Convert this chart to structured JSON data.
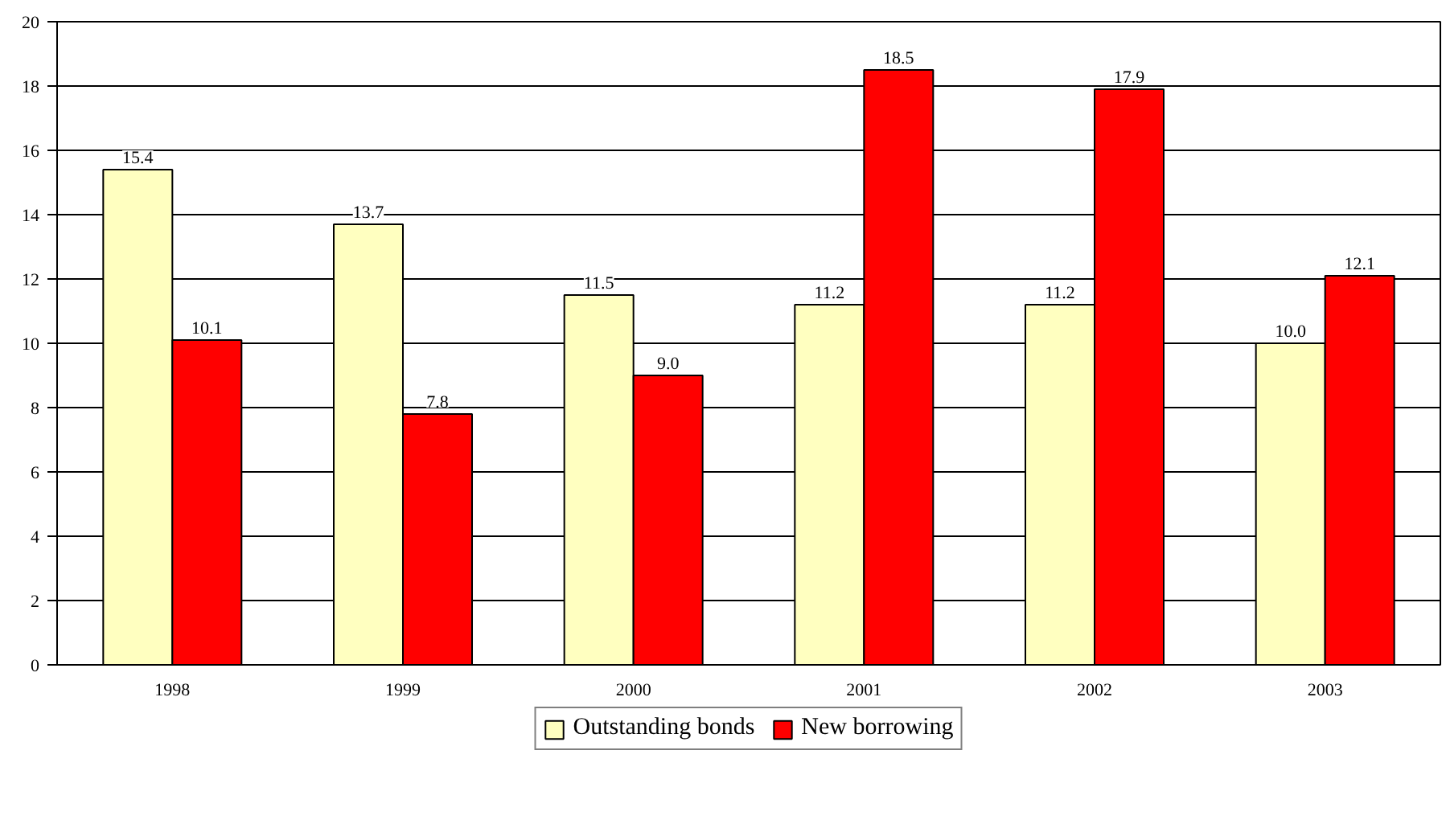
{
  "chart_data": {
    "type": "bar",
    "categories": [
      "1998",
      "1999",
      "2000",
      "2001",
      "2002",
      "2003"
    ],
    "series": [
      {
        "name": "Outstanding bonds",
        "color": "#ffffc0",
        "values": [
          15.4,
          13.7,
          11.5,
          11.2,
          11.2,
          10.0
        ],
        "value_labels": [
          "15.4",
          "13.7",
          "11.5",
          "11.2",
          "11.2",
          "10.0"
        ]
      },
      {
        "name": "New borrowing",
        "color": "#ff0000",
        "values": [
          10.1,
          7.8,
          9.0,
          18.5,
          17.9,
          12.1
        ],
        "value_labels": [
          "10.1",
          "7.8",
          "9.0",
          "18.5",
          "17.9",
          "12.1"
        ]
      }
    ],
    "ylim": [
      0,
      20
    ],
    "yticks": [
      0,
      2,
      4,
      6,
      8,
      10,
      12,
      14,
      16,
      18,
      20
    ],
    "grid": "y",
    "legend": "bottom"
  }
}
